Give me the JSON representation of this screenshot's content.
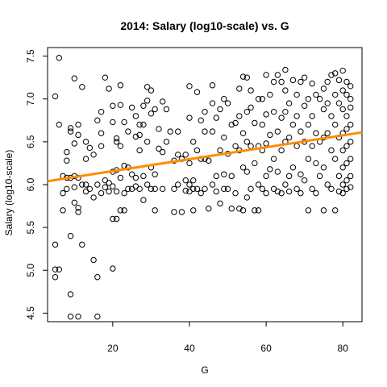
{
  "chart_data": {
    "type": "scatter",
    "title": "2014: Salary (log10-scale) vs. G",
    "xlabel": "G",
    "ylabel": "Salary (log10-scale)",
    "xlim": [
      3,
      85
    ],
    "ylim": [
      4.4,
      7.6
    ],
    "x_ticks": [
      20,
      40,
      60,
      80
    ],
    "y_ticks": [
      4.5,
      5.0,
      5.5,
      6.0,
      6.5,
      7.0,
      7.5
    ],
    "x_tick_labels": [
      "20",
      "40",
      "60",
      "80"
    ],
    "y_tick_labels": [
      "4.5",
      "5.0",
      "5.5",
      "6.0",
      "6.5",
      "7.0",
      "7.5"
    ],
    "grid": false,
    "legend": "none",
    "point_color": "#000000",
    "series": [
      {
        "style": "open-circle",
        "points": [
          [
            6,
            7.48
          ],
          [
            5,
            7.03
          ],
          [
            6,
            6.7
          ],
          [
            5,
            5.3
          ],
          [
            5,
            5.01
          ],
          [
            6,
            5.01
          ],
          [
            5,
            4.92
          ],
          [
            7,
            6.1
          ],
          [
            7,
            5.9
          ],
          [
            7,
            5.7
          ],
          [
            8,
            6.38
          ],
          [
            8,
            6.28
          ],
          [
            8,
            6.08
          ],
          [
            8,
            5.95
          ],
          [
            9,
            6.66
          ],
          [
            9,
            6.62
          ],
          [
            9,
            6.08
          ],
          [
            9,
            5.4
          ],
          [
            9,
            4.72
          ],
          [
            9,
            4.46
          ],
          [
            10,
            7.24
          ],
          [
            10,
            6.48
          ],
          [
            10,
            6.1
          ],
          [
            10,
            5.97
          ],
          [
            10,
            5.79
          ],
          [
            11,
            6.7
          ],
          [
            11,
            6.58
          ],
          [
            11,
            6.08
          ],
          [
            11,
            5.73
          ],
          [
            11,
            5.68
          ],
          [
            11,
            4.46
          ],
          [
            12,
            7.14
          ],
          [
            12,
            6.0
          ],
          [
            12,
            5.3
          ],
          [
            13,
            6.5
          ],
          [
            13,
            6.3
          ],
          [
            13,
            6.0
          ],
          [
            13,
            5.92
          ],
          [
            14,
            6.43
          ],
          [
            14,
            5.95
          ],
          [
            15,
            6.35
          ],
          [
            15,
            5.85
          ],
          [
            15,
            5.12
          ],
          [
            16,
            6.75
          ],
          [
            16,
            4.92
          ],
          [
            16,
            4.46
          ],
          [
            16,
            6.0
          ],
          [
            17,
            6.85
          ],
          [
            17,
            6.6
          ],
          [
            17,
            6.45
          ],
          [
            17,
            5.9
          ],
          [
            18,
            7.25
          ],
          [
            18,
            6.05
          ],
          [
            18,
            5.97
          ],
          [
            19,
            7.12
          ],
          [
            19,
            6.02
          ],
          [
            19,
            5.92
          ],
          [
            20,
            6.92
          ],
          [
            20,
            6.73
          ],
          [
            20,
            6.15
          ],
          [
            20,
            5.98
          ],
          [
            20,
            5.6
          ],
          [
            20,
            5.02
          ],
          [
            21,
            6.54
          ],
          [
            21,
            6.5
          ],
          [
            21,
            6.17
          ],
          [
            21,
            5.92
          ],
          [
            21,
            5.6
          ],
          [
            22,
            7.16
          ],
          [
            22,
            6.93
          ],
          [
            22,
            6.45
          ],
          [
            22,
            6.08
          ],
          [
            22,
            5.7
          ],
          [
            23,
            6.73
          ],
          [
            23,
            6.22
          ],
          [
            23,
            5.9
          ],
          [
            23,
            5.7
          ],
          [
            24,
            6.62
          ],
          [
            24,
            6.2
          ],
          [
            24,
            5.95
          ],
          [
            25,
            6.9
          ],
          [
            25,
            6.12
          ],
          [
            25,
            5.95
          ],
          [
            26,
            6.8
          ],
          [
            26,
            6.56
          ],
          [
            26,
            6.08
          ],
          [
            26,
            5.98
          ],
          [
            27,
            6.7
          ],
          [
            27,
            6.58
          ],
          [
            27,
            6.4
          ],
          [
            27,
            5.95
          ],
          [
            28,
            6.92
          ],
          [
            28,
            6.7
          ],
          [
            28,
            6.1
          ],
          [
            28,
            5.82
          ],
          [
            29,
            7.14
          ],
          [
            29,
            6.98
          ],
          [
            29,
            6.5
          ],
          [
            29,
            6.0
          ],
          [
            30,
            7.1
          ],
          [
            30,
            6.83
          ],
          [
            30,
            6.2
          ],
          [
            30,
            5.95
          ],
          [
            31,
            6.88
          ],
          [
            31,
            6.12
          ],
          [
            31,
            5.95
          ],
          [
            31,
            5.7
          ],
          [
            32,
            6.65
          ],
          [
            32,
            6.42
          ],
          [
            33,
            6.97
          ],
          [
            33,
            6.38
          ],
          [
            33,
            5.95
          ],
          [
            34,
            6.88
          ],
          [
            34,
            6.5
          ],
          [
            35,
            6.62
          ],
          [
            36,
            6.28
          ],
          [
            36,
            5.95
          ],
          [
            36,
            5.68
          ],
          [
            37,
            6.62
          ],
          [
            37,
            6.35
          ],
          [
            37,
            6.0
          ],
          [
            38,
            6.3
          ],
          [
            38,
            5.68
          ],
          [
            39,
            6.35
          ],
          [
            39,
            6.05
          ],
          [
            39,
            5.93
          ],
          [
            40,
            7.15
          ],
          [
            40,
            6.78
          ],
          [
            40,
            6.25
          ],
          [
            40,
            6.0
          ],
          [
            40,
            5.92
          ],
          [
            41,
            6.5
          ],
          [
            41,
            6.05
          ],
          [
            41,
            5.95
          ],
          [
            41,
            5.7
          ],
          [
            42,
            7.08
          ],
          [
            42,
            6.4
          ],
          [
            42,
            5.95
          ],
          [
            43,
            6.75
          ],
          [
            43,
            6.3
          ],
          [
            43,
            5.9
          ],
          [
            44,
            6.85
          ],
          [
            44,
            6.62
          ],
          [
            44,
            6.3
          ],
          [
            44,
            5.95
          ],
          [
            45,
            6.28
          ],
          [
            45,
            5.72
          ],
          [
            46,
            7.16
          ],
          [
            46,
            6.95
          ],
          [
            46,
            6.62
          ],
          [
            46,
            6.0
          ],
          [
            47,
            6.78
          ],
          [
            47,
            6.1
          ],
          [
            47,
            5.92
          ],
          [
            48,
            6.88
          ],
          [
            48,
            6.4
          ],
          [
            48,
            5.78
          ],
          [
            49,
            7.0
          ],
          [
            49,
            6.55
          ],
          [
            49,
            6.12
          ],
          [
            49,
            5.95
          ],
          [
            50,
            6.95
          ],
          [
            50,
            6.36
          ],
          [
            50,
            5.95
          ],
          [
            51,
            6.7
          ],
          [
            51,
            6.1
          ],
          [
            51,
            5.72
          ],
          [
            52,
            6.72
          ],
          [
            52,
            6.45
          ],
          [
            52,
            5.9
          ],
          [
            53,
            7.12
          ],
          [
            53,
            6.8
          ],
          [
            53,
            6.4
          ],
          [
            53,
            5.72
          ],
          [
            54,
            7.26
          ],
          [
            54,
            6.6
          ],
          [
            54,
            6.2
          ],
          [
            54,
            5.7
          ],
          [
            55,
            7.25
          ],
          [
            55,
            6.85
          ],
          [
            55,
            6.5
          ],
          [
            55,
            6.15
          ],
          [
            55,
            5.85
          ],
          [
            56,
            7.1
          ],
          [
            56,
            6.9
          ],
          [
            56,
            6.45
          ],
          [
            56,
            5.95
          ],
          [
            57,
            6.72
          ],
          [
            57,
            6.25
          ],
          [
            57,
            5.7
          ],
          [
            58,
            7.0
          ],
          [
            58,
            6.45
          ],
          [
            58,
            6.0
          ],
          [
            58,
            5.7
          ],
          [
            59,
            7.0
          ],
          [
            59,
            6.7
          ],
          [
            59,
            6.4
          ],
          [
            59,
            5.95
          ],
          [
            60,
            7.28
          ],
          [
            60,
            6.82
          ],
          [
            60,
            6.48
          ],
          [
            60,
            6.1
          ],
          [
            60,
            5.9
          ],
          [
            61,
            7.05
          ],
          [
            61,
            6.58
          ],
          [
            61,
            6.18
          ],
          [
            62,
            7.2
          ],
          [
            62,
            6.85
          ],
          [
            62,
            6.3
          ],
          [
            62,
            5.95
          ],
          [
            63,
            7.28
          ],
          [
            63,
            6.62
          ],
          [
            63,
            6.15
          ],
          [
            63,
            5.92
          ],
          [
            64,
            7.2
          ],
          [
            64,
            6.78
          ],
          [
            64,
            6.4
          ],
          [
            64,
            5.9
          ],
          [
            65,
            7.34
          ],
          [
            65,
            7.1
          ],
          [
            65,
            6.85
          ],
          [
            65,
            6.5
          ],
          [
            65,
            6.0
          ],
          [
            66,
            6.95
          ],
          [
            66,
            6.55
          ],
          [
            66,
            6.1
          ],
          [
            66,
            5.92
          ],
          [
            67,
            7.22
          ],
          [
            67,
            6.7
          ],
          [
            67,
            6.2
          ],
          [
            68,
            7.05
          ],
          [
            68,
            6.8
          ],
          [
            68,
            6.45
          ],
          [
            68,
            5.95
          ],
          [
            69,
            7.2
          ],
          [
            69,
            6.62
          ],
          [
            69,
            6.12
          ],
          [
            69,
            5.9
          ],
          [
            70,
            7.25
          ],
          [
            70,
            6.92
          ],
          [
            70,
            6.5
          ],
          [
            70,
            6.05
          ],
          [
            71,
            7.0
          ],
          [
            71,
            6.7
          ],
          [
            71,
            6.3
          ],
          [
            71,
            5.7
          ],
          [
            72,
            7.18
          ],
          [
            72,
            6.8
          ],
          [
            72,
            6.45
          ],
          [
            72,
            5.95
          ],
          [
            73,
            7.05
          ],
          [
            73,
            6.6
          ],
          [
            73,
            6.25
          ],
          [
            73,
            5.9
          ],
          [
            74,
            7.0
          ],
          [
            74,
            6.5
          ],
          [
            74,
            6.1
          ],
          [
            75,
            7.12
          ],
          [
            75,
            6.88
          ],
          [
            75,
            6.55
          ],
          [
            75,
            6.2
          ],
          [
            75,
            5.7
          ],
          [
            76,
            7.2
          ],
          [
            76,
            6.95
          ],
          [
            76,
            6.6
          ],
          [
            76,
            6.0
          ],
          [
            77,
            7.28
          ],
          [
            77,
            6.8
          ],
          [
            77,
            6.4
          ],
          [
            77,
            5.95
          ],
          [
            78,
            7.3
          ],
          [
            78,
            7.05
          ],
          [
            78,
            6.7
          ],
          [
            78,
            6.3
          ],
          [
            78,
            5.7
          ],
          [
            79,
            7.22
          ],
          [
            79,
            6.95
          ],
          [
            79,
            6.55
          ],
          [
            79,
            6.1
          ],
          [
            79,
            5.92
          ],
          [
            80,
            7.33
          ],
          [
            80,
            7.1
          ],
          [
            80,
            6.88
          ],
          [
            80,
            6.6
          ],
          [
            80,
            6.4
          ],
          [
            80,
            6.2
          ],
          [
            80,
            6.0
          ],
          [
            80,
            5.9
          ],
          [
            81,
            7.2
          ],
          [
            81,
            7.05
          ],
          [
            81,
            6.8
          ],
          [
            81,
            6.65
          ],
          [
            81,
            6.45
          ],
          [
            81,
            6.25
          ],
          [
            81,
            6.05
          ],
          [
            81,
            5.95
          ],
          [
            82,
            7.15
          ],
          [
            82,
            7.0
          ],
          [
            82,
            6.9
          ],
          [
            82,
            6.7
          ],
          [
            82,
            6.5
          ],
          [
            82,
            6.3
          ],
          [
            82,
            6.1
          ],
          [
            82,
            5.97
          ]
        ]
      }
    ],
    "trend_line": {
      "color": "#FF8C00",
      "points": [
        [
          3,
          6.04
        ],
        [
          85,
          6.61
        ]
      ]
    }
  }
}
